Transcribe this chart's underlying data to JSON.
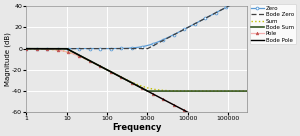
{
  "freq_min": 1,
  "freq_max": 300000,
  "pole_freq": 10,
  "zero_freq": 1000,
  "ylim": [
    -60,
    40
  ],
  "yticks": [
    -60,
    -40,
    -20,
    0,
    20,
    40
  ],
  "ylabel": "Magnitude (dB)",
  "xlabel": "Frequency",
  "xticks": [
    1,
    10,
    100,
    1000,
    10000,
    100000
  ],
  "xticklabels": [
    "1",
    "10",
    "100",
    "1000",
    "10000",
    "100000"
  ],
  "legend_entries": [
    "Zero",
    "Bode Zero",
    "Sum",
    "Bode Sum",
    "Pole",
    "Bode Pole"
  ],
  "colors": {
    "zero": "#5B9BD5",
    "bode_zero": "#404040",
    "sum": "#BFBF00",
    "bode_sum": "#375623",
    "pole": "#F4AFAF",
    "bode_pole": "#000000"
  },
  "marker_colors": {
    "zero": "#4472C4",
    "pole": "#C0504D"
  },
  "bg_color": "#E8E8E8",
  "grid_color": "#FFFFFF",
  "figsize": [
    3.0,
    1.36
  ],
  "dpi": 100
}
